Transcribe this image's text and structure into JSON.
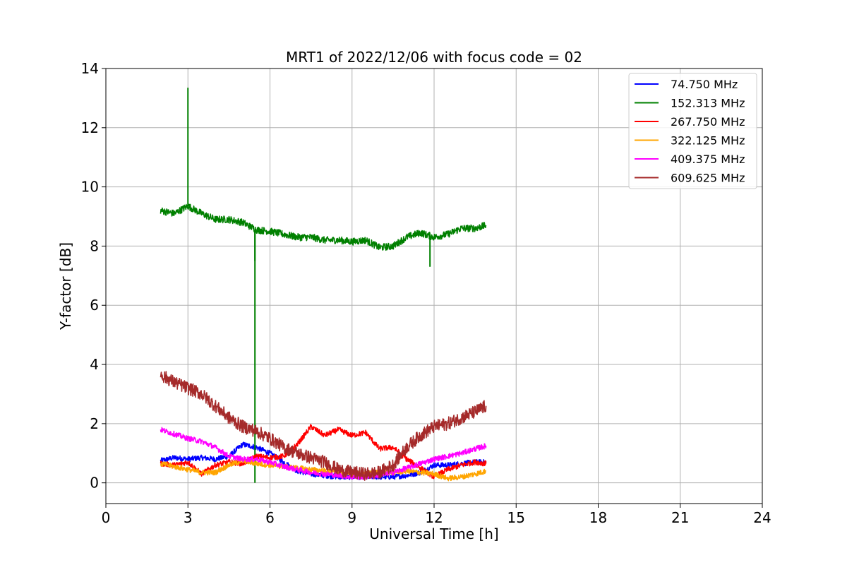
{
  "chart_data": {
    "type": "line",
    "title": "MRT1 of 2022/12/06 with focus code = 02",
    "xlabel": "Universal Time [h]",
    "ylabel": "Y-factor [dB]",
    "xlim": [
      0,
      24
    ],
    "ylim": [
      -0.7,
      14
    ],
    "xticks": [
      0,
      3,
      6,
      9,
      12,
      15,
      18,
      21,
      24
    ],
    "yticks": [
      0,
      2,
      4,
      6,
      8,
      10,
      12,
      14
    ],
    "grid": true,
    "legend_position": "top-right",
    "series": [
      {
        "name": " 74.750 MHz",
        "color": "#0000ff",
        "x": [
          2.0,
          2.5,
          3.0,
          3.5,
          4.0,
          4.5,
          5.0,
          5.5,
          6.0,
          6.5,
          7.0,
          7.5,
          8.0,
          8.5,
          9.0,
          9.5,
          10.0,
          10.5,
          11.0,
          11.5,
          12.0,
          12.5,
          13.0,
          13.5,
          13.9
        ],
        "y": [
          0.75,
          0.85,
          0.8,
          0.85,
          0.8,
          0.9,
          1.3,
          1.2,
          1.0,
          0.7,
          0.4,
          0.3,
          0.25,
          0.2,
          0.2,
          0.2,
          0.2,
          0.2,
          0.25,
          0.35,
          0.6,
          0.6,
          0.65,
          0.7,
          0.7
        ]
      },
      {
        "name": "152.313 MHz",
        "color": "#008000",
        "x": [
          2.0,
          2.5,
          3.0,
          3.5,
          4.0,
          4.5,
          5.0,
          5.5,
          6.0,
          6.5,
          7.0,
          7.5,
          8.0,
          8.5,
          9.0,
          9.5,
          10.0,
          10.5,
          11.0,
          11.5,
          12.0,
          12.5,
          13.0,
          13.5,
          13.9
        ],
        "y": [
          9.2,
          9.1,
          9.35,
          9.1,
          8.9,
          8.9,
          8.8,
          8.55,
          8.5,
          8.4,
          8.3,
          8.3,
          8.2,
          8.2,
          8.15,
          8.2,
          7.95,
          8.0,
          8.3,
          8.45,
          8.3,
          8.4,
          8.6,
          8.6,
          8.7
        ],
        "spikes": [
          [
            3.0,
            13.35
          ],
          [
            5.45,
            0.0
          ],
          [
            5.45,
            7.5
          ],
          [
            11.85,
            7.3
          ]
        ]
      },
      {
        "name": "267.750 MHz",
        "color": "#ff0000",
        "x": [
          2.0,
          2.5,
          3.0,
          3.5,
          4.0,
          4.5,
          5.0,
          5.5,
          6.0,
          6.5,
          7.0,
          7.5,
          8.0,
          8.5,
          9.0,
          9.5,
          10.0,
          10.5,
          11.0,
          11.5,
          12.0,
          12.5,
          13.0,
          13.5,
          13.9
        ],
        "y": [
          0.65,
          0.6,
          0.7,
          0.3,
          0.6,
          0.7,
          0.65,
          0.9,
          0.85,
          0.9,
          1.3,
          1.9,
          1.6,
          1.8,
          1.6,
          1.7,
          1.15,
          1.2,
          0.8,
          0.5,
          0.2,
          0.45,
          0.6,
          0.7,
          0.65
        ]
      },
      {
        "name": "322.125 MHz",
        "color": "#ffa500",
        "x": [
          2.0,
          2.5,
          3.0,
          3.5,
          4.0,
          4.5,
          5.0,
          5.5,
          6.0,
          6.5,
          7.0,
          7.5,
          8.0,
          8.5,
          9.0,
          9.5,
          10.0,
          10.5,
          11.0,
          11.5,
          12.0,
          12.5,
          13.0,
          13.5,
          13.9
        ],
        "y": [
          0.65,
          0.55,
          0.45,
          0.35,
          0.35,
          0.6,
          0.75,
          0.65,
          0.6,
          0.55,
          0.5,
          0.45,
          0.4,
          0.35,
          0.3,
          0.3,
          0.35,
          0.35,
          0.4,
          0.35,
          0.3,
          0.15,
          0.2,
          0.3,
          0.4
        ]
      },
      {
        "name": "409.375 MHz",
        "color": "#ff00ff",
        "x": [
          2.0,
          2.5,
          3.0,
          3.5,
          4.0,
          4.5,
          5.0,
          5.5,
          6.0,
          6.5,
          7.0,
          7.5,
          8.0,
          8.5,
          9.0,
          9.5,
          10.0,
          10.5,
          11.0,
          11.5,
          12.0,
          12.5,
          13.0,
          13.5,
          13.9
        ],
        "y": [
          1.8,
          1.65,
          1.5,
          1.4,
          1.2,
          0.9,
          0.8,
          0.8,
          0.7,
          0.55,
          0.45,
          0.35,
          0.3,
          0.25,
          0.2,
          0.2,
          0.25,
          0.35,
          0.5,
          0.65,
          0.8,
          0.9,
          1.0,
          1.15,
          1.25
        ]
      },
      {
        "name": "609.625 MHz",
        "color": "#a52a2a",
        "x": [
          2.0,
          2.5,
          3.0,
          3.5,
          4.0,
          4.5,
          5.0,
          5.5,
          6.0,
          6.5,
          7.0,
          7.5,
          8.0,
          8.5,
          9.0,
          9.5,
          10.0,
          10.5,
          11.0,
          11.5,
          12.0,
          12.5,
          13.0,
          13.5,
          13.9
        ],
        "y": [
          3.65,
          3.4,
          3.2,
          3.0,
          2.6,
          2.2,
          1.9,
          1.75,
          1.5,
          1.2,
          1.0,
          0.85,
          0.7,
          0.45,
          0.35,
          0.3,
          0.35,
          0.6,
          1.2,
          1.6,
          1.9,
          2.0,
          2.2,
          2.4,
          2.6
        ]
      }
    ]
  }
}
